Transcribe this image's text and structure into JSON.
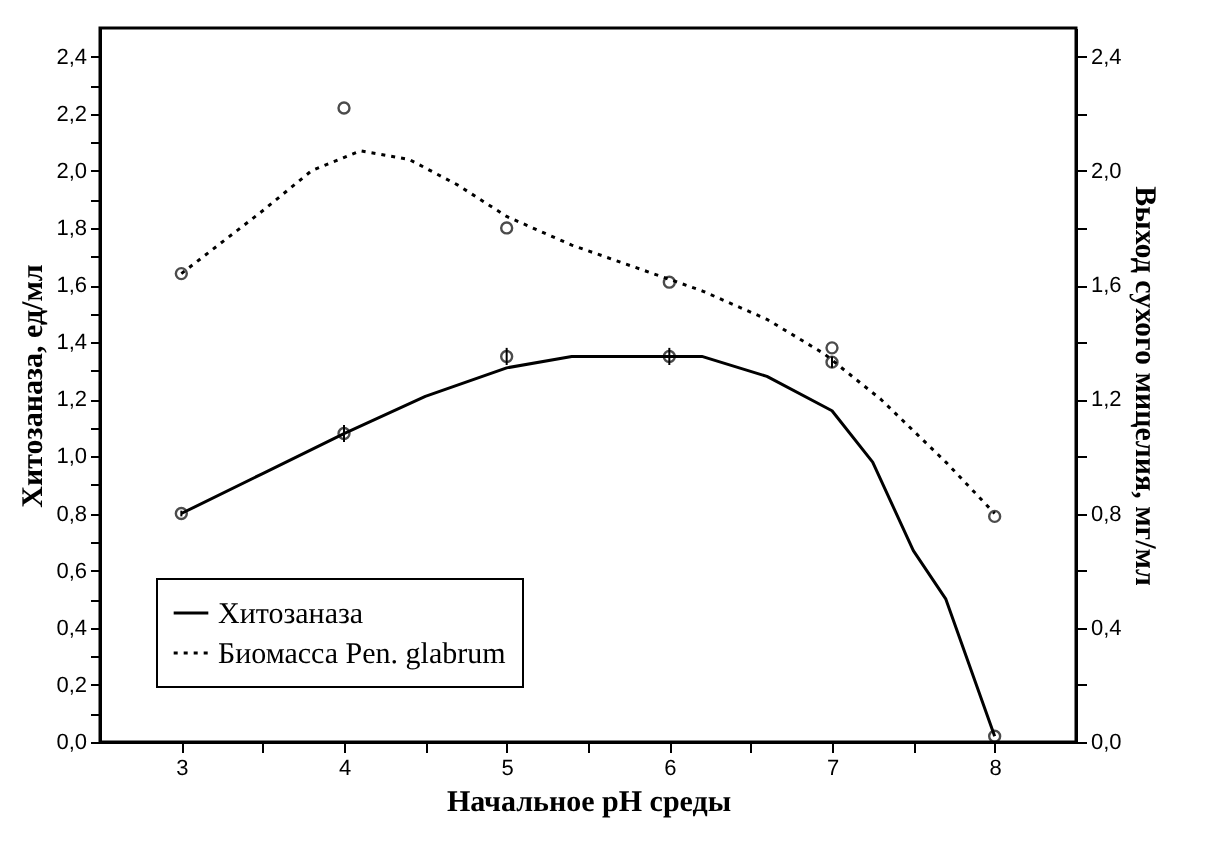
{
  "chart_data": {
    "type": "line",
    "xlabel": "Начальное pH среды",
    "ylabel": "Хитозаназа, ед/мл",
    "y2label": "Выход сухого мицелия, мг/мл",
    "xlim": [
      2.5,
      8.5
    ],
    "xticks": [
      3,
      {
        "value": 3.5,
        "label": null
      },
      4,
      {
        "value": 4.5,
        "label": null
      },
      5,
      {
        "value": 5.5,
        "label": null
      },
      6,
      {
        "value": 6.5,
        "label": null
      },
      7,
      {
        "value": 7.5,
        "label": null
      },
      8
    ],
    "ylim": [
      0,
      2.5
    ],
    "yticks": [
      {
        "value": 0,
        "label": "0,0"
      },
      {
        "value": 0.1,
        "label": null
      },
      {
        "value": 0.2,
        "label": "0,2"
      },
      {
        "value": 0.3,
        "label": null
      },
      {
        "value": 0.4,
        "label": "0,4"
      },
      {
        "value": 0.5,
        "label": null
      },
      {
        "value": 0.6,
        "label": "0,6"
      },
      {
        "value": 0.7,
        "label": null
      },
      {
        "value": 0.8,
        "label": "0,8"
      },
      {
        "value": 0.9,
        "label": null
      },
      {
        "value": 1,
        "label": "1,0"
      },
      {
        "value": 1.1,
        "label": null
      },
      {
        "value": 1.2,
        "label": "1,2"
      },
      {
        "value": 1.3,
        "label": null
      },
      {
        "value": 1.4,
        "label": "1,4"
      },
      {
        "value": 1.5,
        "label": null
      },
      {
        "value": 1.6,
        "label": "1,6"
      },
      {
        "value": 1.7,
        "label": null
      },
      {
        "value": 1.8,
        "label": "1,8"
      },
      {
        "value": 1.9,
        "label": null
      },
      {
        "value": 2,
        "label": "2,0"
      },
      {
        "value": 2.1,
        "label": null
      },
      {
        "value": 2.2,
        "label": "2,2"
      },
      {
        "value": 2.3,
        "label": null
      },
      {
        "value": 2.4,
        "label": "2,4"
      }
    ],
    "y2lim": [
      0,
      2.5
    ],
    "y2ticks": [
      {
        "value": 0,
        "label": "0,0"
      },
      {
        "value": 0.2,
        "label": null
      },
      {
        "value": 0.4,
        "label": "0,4"
      },
      {
        "value": 0.6,
        "label": null
      },
      {
        "value": 0.8,
        "label": "0,8"
      },
      {
        "value": 1,
        "label": null
      },
      {
        "value": 1.2,
        "label": "1,2"
      },
      {
        "value": 1.4,
        "label": null
      },
      {
        "value": 1.6,
        "label": "1,6"
      },
      {
        "value": 1.8,
        "label": null
      },
      {
        "value": 2,
        "label": "2,0"
      },
      {
        "value": 2.2,
        "label": null
      },
      {
        "value": 2.4,
        "label": "2,4"
      }
    ],
    "legend": "bottom left",
    "series": [
      {
        "name": "Хитозаназа",
        "color": "#000000",
        "line_style": "solid",
        "marker": "none",
        "x": [
          3,
          3.5,
          4,
          4.5,
          5,
          5.4,
          5.8,
          6.2,
          6.6,
          7,
          7.25,
          7.5,
          7.7,
          8
        ],
        "values": [
          0.8,
          0.94,
          1.08,
          1.21,
          1.31,
          1.35,
          1.35,
          1.35,
          1.28,
          1.16,
          0.98,
          0.67,
          0.5,
          0.02
        ]
      },
      {
        "type": "scatter",
        "color": "#000000",
        "marker": "circle",
        "x": [
          3,
          4,
          5,
          6,
          7,
          8
        ],
        "values": [
          0.8,
          1.08,
          1.35,
          1.35,
          1.33,
          0.02
        ],
        "errors": [
          0.01,
          0.03,
          0.03,
          0.03,
          0.02,
          null
        ]
      },
      {
        "name": "Биомасса Pen. glabrum",
        "axis": "y2",
        "color": "#000000",
        "line_style": "dotted",
        "marker": "none",
        "x": [
          3,
          3.5,
          3.8,
          4.1,
          4.4,
          4.7,
          5,
          5.4,
          5.8,
          6.2,
          6.6,
          6.95,
          7.3,
          7.7,
          8
        ],
        "values": [
          1.64,
          1.86,
          2.0,
          2.07,
          2.04,
          1.95,
          1.84,
          1.74,
          1.66,
          1.58,
          1.48,
          1.36,
          1.2,
          0.98,
          0.8
        ]
      },
      {
        "type": "scatter",
        "axis": "y2",
        "color": "#000000",
        "marker": "circle",
        "x": [
          3,
          4,
          5,
          6,
          7,
          8
        ],
        "values": [
          1.64,
          2.22,
          1.8,
          1.61,
          1.38,
          0.79
        ]
      }
    ]
  }
}
